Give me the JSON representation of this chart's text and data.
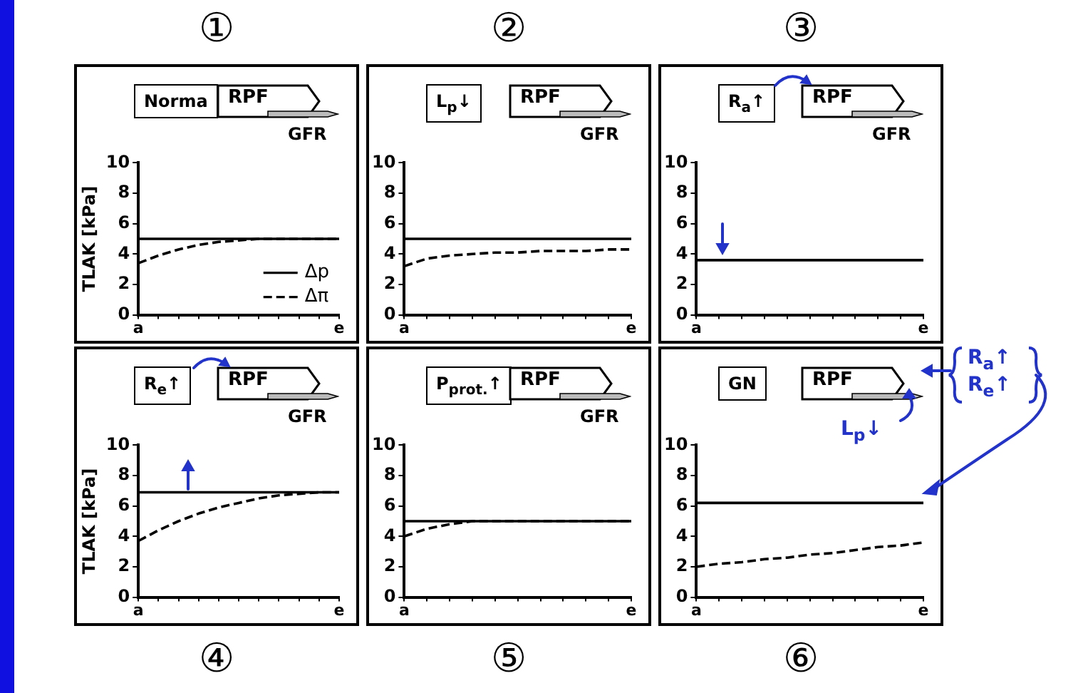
{
  "chart_data": [
    {
      "type": "line",
      "title": "①",
      "ylabel": "TLAK [kPa]",
      "annotations": [
        "Norma",
        "RPF",
        "GFR"
      ],
      "categories": [
        "a",
        null,
        null,
        null,
        null,
        null,
        null,
        null,
        null,
        null,
        "e"
      ],
      "ylim": [
        0,
        10
      ],
      "yticks": [
        0,
        2,
        4,
        6,
        8,
        10
      ],
      "grid": false,
      "marker": "none",
      "legend": "bottom right",
      "series": [
        {
          "name": "Δp",
          "color": "#000000",
          "line_style": "solid",
          "values": [
            5,
            5,
            5,
            5,
            5,
            5,
            5,
            5,
            5,
            5,
            5
          ]
        },
        {
          "name": "Δπ",
          "color": "#000000",
          "line_style": "dashed",
          "values": [
            3.4,
            3.9,
            4.3,
            4.6,
            4.8,
            4.9,
            5,
            5,
            5,
            5,
            5
          ]
        }
      ]
    },
    {
      "type": "line",
      "title": "②",
      "annotations": [
        "L$_{p}$↓",
        "RPF",
        "GFR"
      ],
      "categories": [
        "a",
        null,
        null,
        null,
        null,
        null,
        null,
        null,
        null,
        null,
        "e"
      ],
      "ylim": [
        0,
        10
      ],
      "yticks": [
        0,
        2,
        4,
        6,
        8,
        10
      ],
      "grid": false,
      "marker": "none",
      "series": [
        {
          "color": "#000000",
          "line_style": "solid",
          "values": [
            5,
            5,
            5,
            5,
            5,
            5,
            5,
            5,
            5,
            5,
            5
          ]
        },
        {
          "color": "#000000",
          "line_style": "dashed",
          "values": [
            3.2,
            3.7,
            3.9,
            4.0,
            4.1,
            4.1,
            4.2,
            4.2,
            4.2,
            4.3,
            4.3
          ]
        }
      ]
    },
    {
      "type": "line",
      "title": "③",
      "annotations": [
        "R$_{a}$↑",
        "RPF",
        "GFR"
      ],
      "categories": [
        "a",
        null,
        null,
        null,
        null,
        null,
        null,
        null,
        null,
        null,
        "e"
      ],
      "ylim": [
        0,
        10
      ],
      "yticks": [
        0,
        2,
        4,
        6,
        8,
        10
      ],
      "grid": false,
      "marker": "none",
      "series": [
        {
          "color": "#000000",
          "line_style": "solid",
          "values": [
            3.6,
            3.6,
            3.6,
            3.6,
            3.6,
            3.6,
            3.6,
            3.6,
            3.6,
            3.6,
            3.6
          ]
        }
      ]
    },
    {
      "type": "line",
      "title": "④",
      "ylabel": "TLAK [kPa]",
      "annotations": [
        "R$_{e}$↑",
        "RPF",
        "GFR"
      ],
      "categories": [
        "a",
        null,
        null,
        null,
        null,
        null,
        null,
        null,
        null,
        null,
        "e"
      ],
      "ylim": [
        0,
        10
      ],
      "yticks": [
        0,
        2,
        4,
        6,
        8,
        10
      ],
      "grid": false,
      "marker": "none",
      "series": [
        {
          "color": "#000000",
          "line_style": "solid",
          "values": [
            6.9,
            6.9,
            6.9,
            6.9,
            6.9,
            6.9,
            6.9,
            6.9,
            6.9,
            6.9,
            6.9
          ]
        },
        {
          "color": "#000000",
          "line_style": "dashed",
          "values": [
            3.7,
            4.4,
            5.0,
            5.5,
            5.9,
            6.2,
            6.5,
            6.7,
            6.8,
            6.9,
            6.9
          ]
        }
      ]
    },
    {
      "type": "line",
      "title": "⑤",
      "annotations": [
        "P$_{prot.}$↑",
        "RPF",
        "GFR"
      ],
      "categories": [
        "a",
        null,
        null,
        null,
        null,
        null,
        null,
        null,
        null,
        null,
        "e"
      ],
      "ylim": [
        0,
        10
      ],
      "yticks": [
        0,
        2,
        4,
        6,
        8,
        10
      ],
      "grid": false,
      "marker": "none",
      "series": [
        {
          "color": "#000000",
          "line_style": "solid",
          "values": [
            5,
            5,
            5,
            5,
            5,
            5,
            5,
            5,
            5,
            5,
            5
          ]
        },
        {
          "color": "#000000",
          "line_style": "dashed",
          "values": [
            4.0,
            4.5,
            4.8,
            5,
            5,
            5,
            5,
            5,
            5,
            5,
            5
          ]
        }
      ]
    },
    {
      "type": "line",
      "title": "⑥",
      "annotations": [
        "GN",
        "RPF",
        "R$_{a}$↑",
        "R$_{e}$↑",
        "L$_{p}$↓"
      ],
      "categories": [
        "a",
        null,
        null,
        null,
        null,
        null,
        null,
        null,
        null,
        null,
        "e"
      ],
      "ylim": [
        0,
        10
      ],
      "yticks": [
        0,
        2,
        4,
        6,
        8,
        10
      ],
      "grid": false,
      "marker": "none",
      "series": [
        {
          "color": "#000000",
          "line_style": "solid",
          "values": [
            6.2,
            6.2,
            6.2,
            6.2,
            6.2,
            6.2,
            6.2,
            6.2,
            6.2,
            6.2,
            6.2
          ]
        },
        {
          "color": "#000000",
          "line_style": "dashed",
          "values": [
            2.0,
            2.2,
            2.3,
            2.5,
            2.6,
            2.8,
            2.9,
            3.1,
            3.3,
            3.4,
            3.6
          ]
        }
      ]
    }
  ]
}
